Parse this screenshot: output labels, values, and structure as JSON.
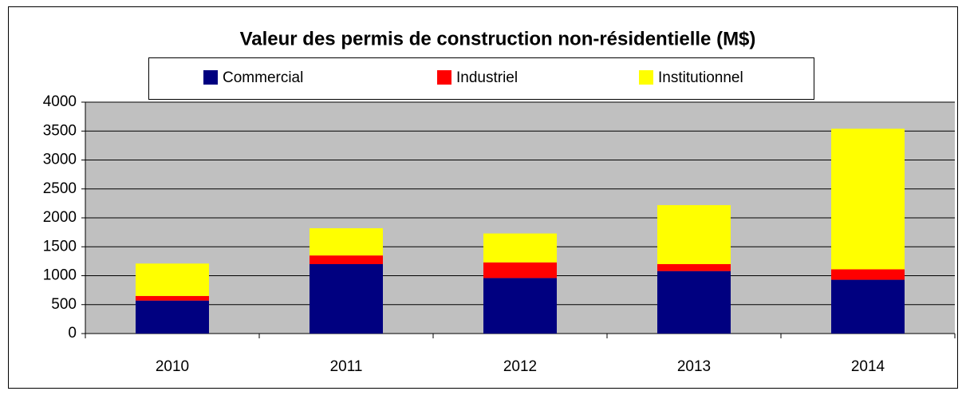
{
  "chart_data": {
    "type": "stacked_bar",
    "title": "Valeur des permis de construction non-résidentielle (M$)",
    "categories": [
      "2010",
      "2011",
      "2012",
      "2013",
      "2014"
    ],
    "series": [
      {
        "name": "Commercial",
        "color": "#000080",
        "values": [
          570,
          1200,
          960,
          1080,
          930
        ]
      },
      {
        "name": "Industriel",
        "color": "#ff0000",
        "values": [
          80,
          150,
          270,
          120,
          180
        ]
      },
      {
        "name": "Institutionnel",
        "color": "#ffff00",
        "values": [
          560,
          470,
          500,
          1020,
          2430
        ]
      }
    ],
    "ylim": [
      0,
      4000
    ],
    "yticks": [
      0,
      500,
      1000,
      1500,
      2000,
      2500,
      3000,
      3500,
      4000
    ],
    "grid": true,
    "legend": "top"
  }
}
